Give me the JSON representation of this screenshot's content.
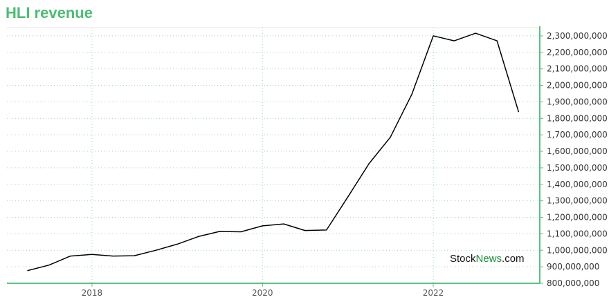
{
  "title": "HLI revenue",
  "watermark": {
    "part1": "Stock",
    "part2": "News",
    "part3": ".com"
  },
  "colors": {
    "title": "#4dbd74",
    "axis": "#5cc083",
    "grid": "#9ed9b4",
    "line": "#000000",
    "watermark_accent": "#1f8f3a"
  },
  "chart_data": {
    "type": "line",
    "title": "HLI revenue",
    "xlabel": "",
    "ylabel": "",
    "ylim": [
      800000000,
      2350000000
    ],
    "xlim": [
      "2017-01-01",
      "2023-04-01"
    ],
    "grid": true,
    "y_axis_position": "right",
    "x_ticks": [
      {
        "label": "2018",
        "date": "2017-12-31"
      },
      {
        "label": "2020",
        "date": "2019-12-31"
      },
      {
        "label": "2022",
        "date": "2021-12-31"
      }
    ],
    "y_ticks": [
      {
        "label": "800,000,000",
        "value": 800000000
      },
      {
        "label": "900,000,000",
        "value": 900000000
      },
      {
        "label": "1,000,000,000",
        "value": 1000000000
      },
      {
        "label": "1,100,000,000",
        "value": 1100000000
      },
      {
        "label": "1,200,000,000",
        "value": 1200000000
      },
      {
        "label": "1,300,000,000",
        "value": 1300000000
      },
      {
        "label": "1,400,000,000",
        "value": 1400000000
      },
      {
        "label": "1,500,000,000",
        "value": 1500000000
      },
      {
        "label": "1,600,000,000",
        "value": 1600000000
      },
      {
        "label": "1,700,000,000",
        "value": 1700000000
      },
      {
        "label": "1,800,000,000",
        "value": 1800000000
      },
      {
        "label": "1,900,000,000",
        "value": 1900000000
      },
      {
        "label": "2,000,000,000",
        "value": 2000000000
      },
      {
        "label": "2,100,000,000",
        "value": 2100000000
      },
      {
        "label": "2,200,000,000",
        "value": 2200000000
      },
      {
        "label": "2,300,000,000",
        "value": 2300000000
      }
    ],
    "series": [
      {
        "x": [
          "2017-03-31",
          "2017-06-30",
          "2017-09-30",
          "2017-12-31",
          "2018-03-31",
          "2018-06-30",
          "2018-09-30",
          "2018-12-31",
          "2019-03-31",
          "2019-06-30",
          "2019-09-30",
          "2019-12-31",
          "2020-03-31",
          "2020-06-30",
          "2020-09-30",
          "2020-12-31",
          "2021-03-31",
          "2021-06-30",
          "2021-09-30",
          "2021-12-31",
          "2022-03-31",
          "2022-06-30",
          "2022-09-30",
          "2022-12-31"
        ],
        "values": [
          877000000,
          910000000,
          965000000,
          975000000,
          965000000,
          967000000,
          1000000000,
          1037000000,
          1083000000,
          1114000000,
          1112000000,
          1148000000,
          1160000000,
          1120000000,
          1123000000,
          1325000000,
          1525000000,
          1685000000,
          1945000000,
          2300000000,
          2270000000,
          2316000000,
          2270000000,
          1840000000
        ]
      }
    ]
  }
}
